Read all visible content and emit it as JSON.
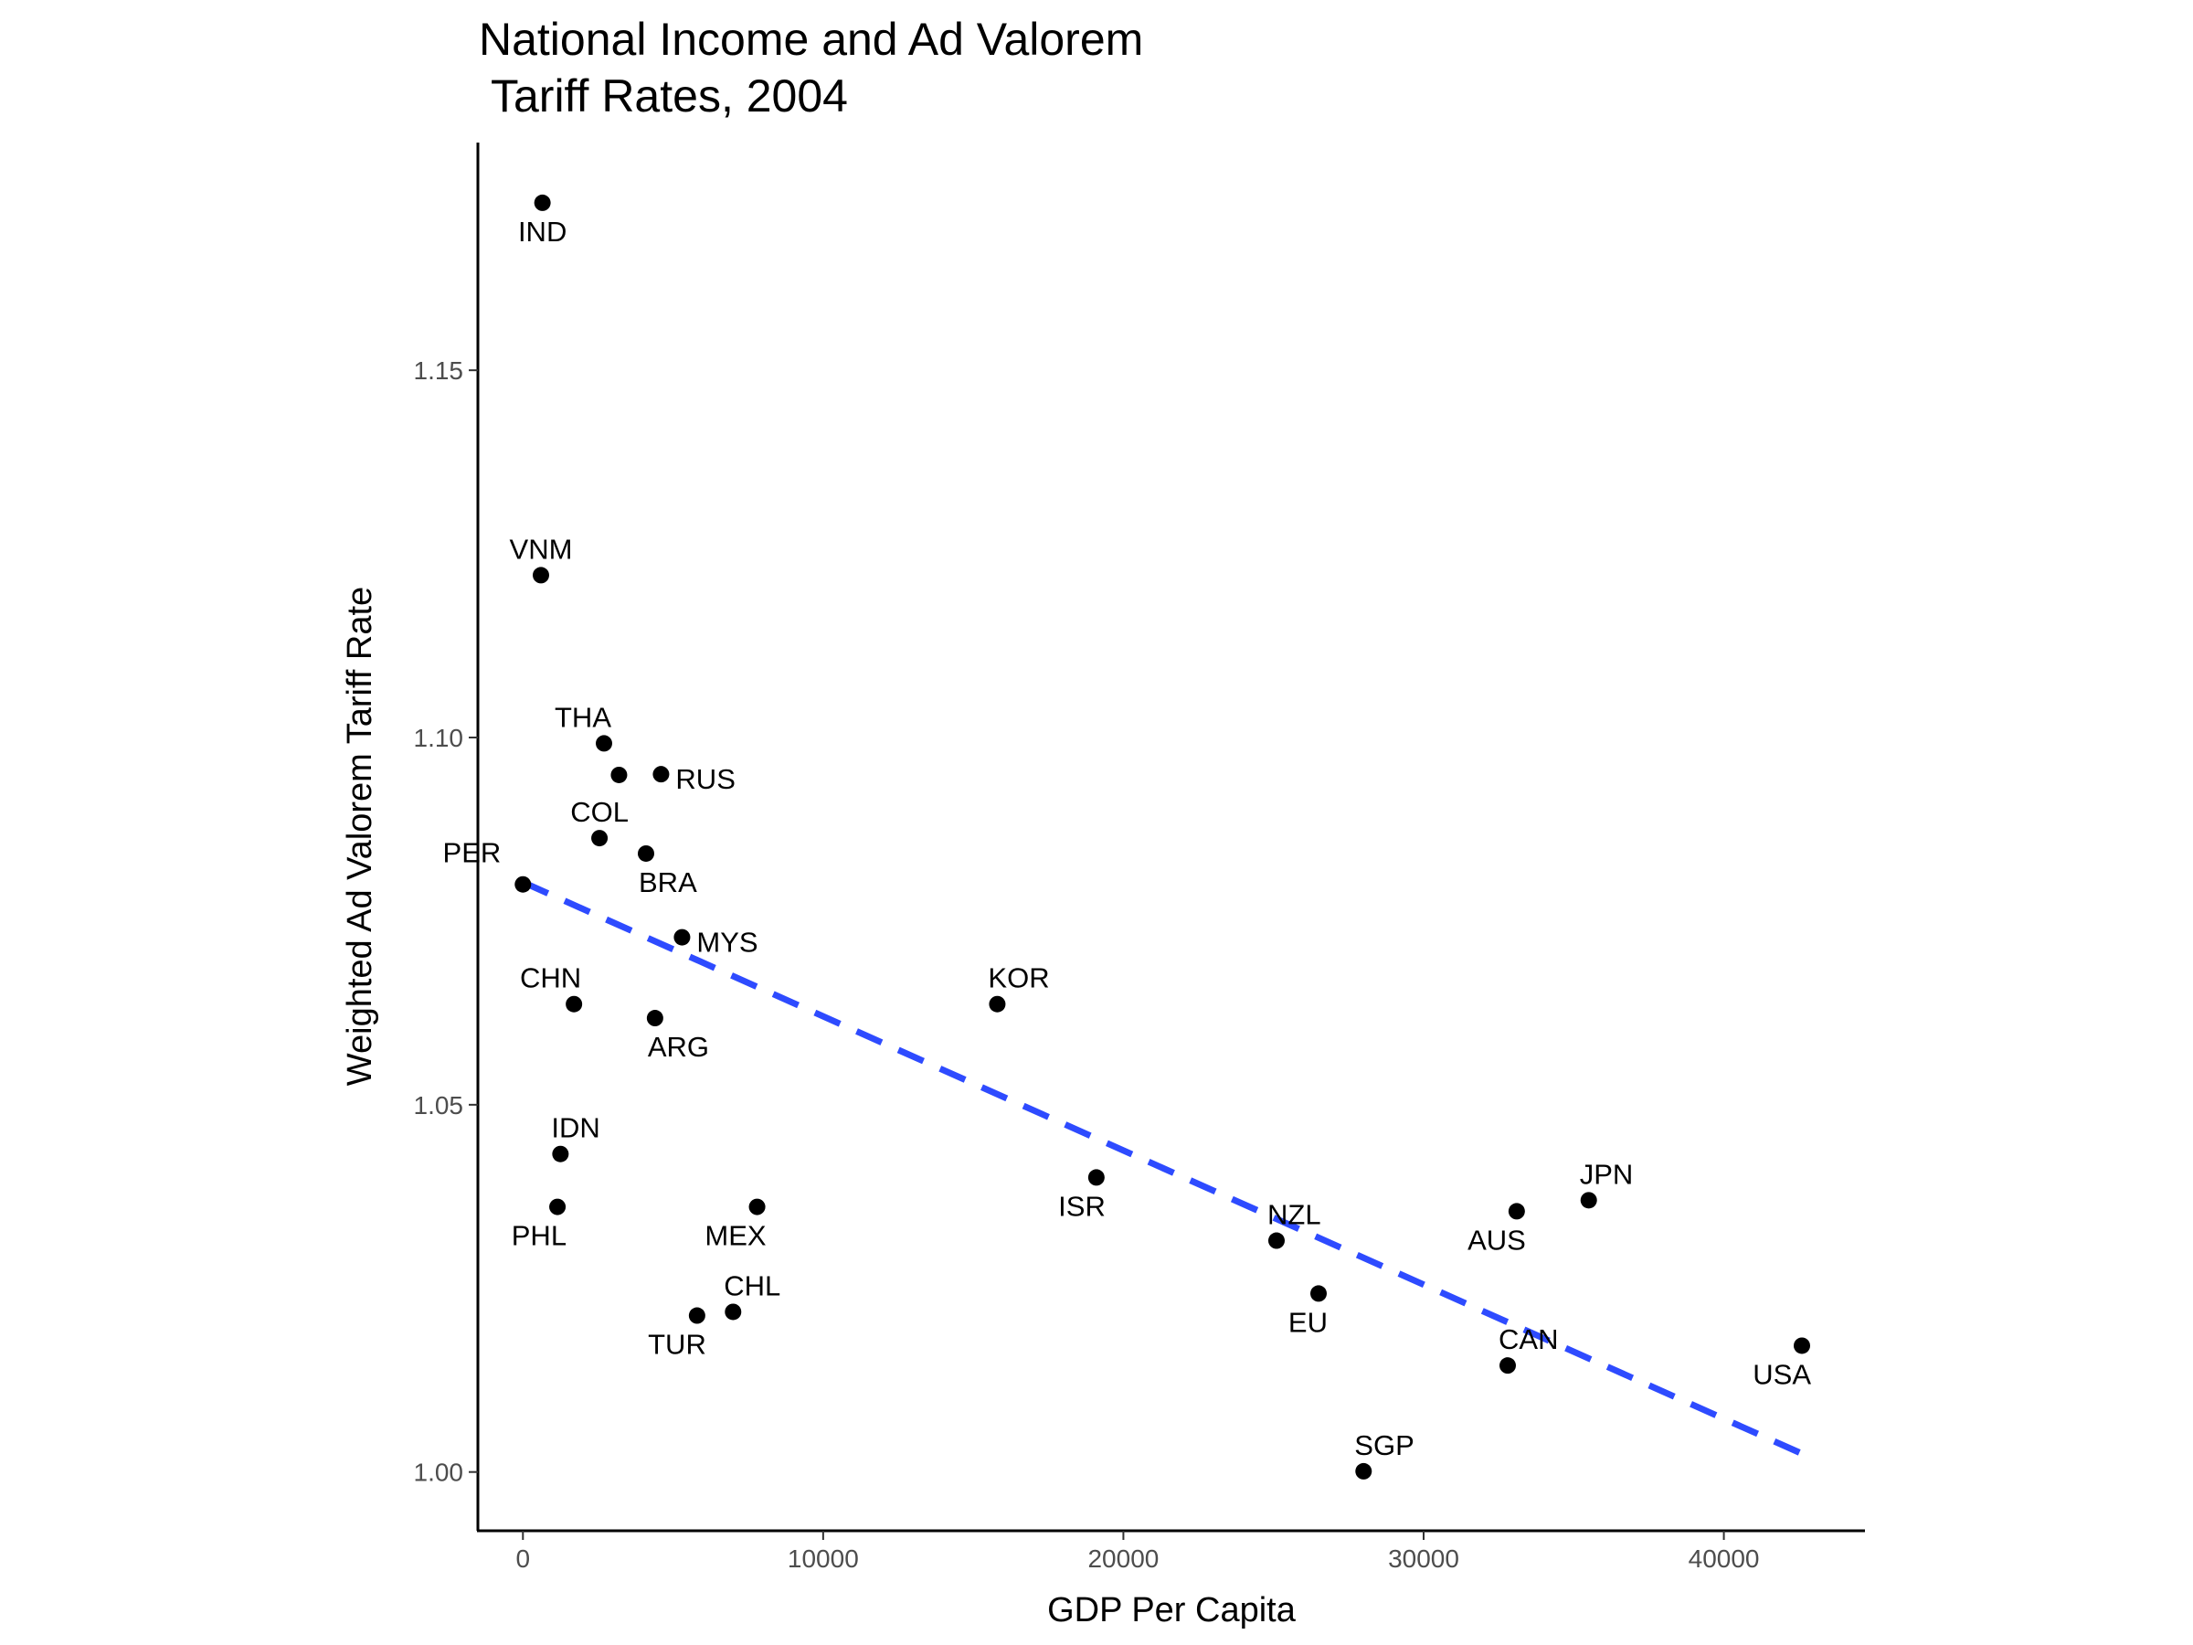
{
  "chart_data": {
    "type": "scatter",
    "title_lines": [
      "National Income and Ad Valorem",
      " Tariff Rates, 2004"
    ],
    "xlabel": "GDP Per Capita",
    "ylabel": "Weighted Ad Valorem Tariff Rate",
    "xlim": [
      -1500,
      44700
    ],
    "ylim": [
      0.992,
      1.181
    ],
    "x_ticks": [
      0,
      10000,
      20000,
      30000,
      40000
    ],
    "x_tick_labels": [
      "0",
      "10000",
      "20000",
      "30000",
      "40000"
    ],
    "y_ticks": [
      1.0,
      1.05,
      1.1,
      1.15
    ],
    "y_tick_labels": [
      "1.00",
      "1.05",
      "1.10",
      "1.15"
    ],
    "grid": false,
    "point_color": "#000000",
    "trend_color": "#2E4BFF",
    "trend_line": {
      "style": "dashed",
      "x": [
        0,
        42600
      ],
      "y": [
        1.0803,
        1.0025
      ]
    },
    "points": [
      {
        "label": "IND",
        "x": 650,
        "y": 1.1728,
        "label_pos": "below"
      },
      {
        "label": "VNM",
        "x": 600,
        "y": 1.1221,
        "label_pos": "above"
      },
      {
        "label": "THA",
        "x": 2700,
        "y": 1.0992,
        "label_pos": "above-left"
      },
      {
        "label": "",
        "x": 3200,
        "y": 1.0949,
        "label_pos": "none"
      },
      {
        "label": "RUS",
        "x": 4600,
        "y": 1.095,
        "label_pos": "right"
      },
      {
        "label": "COL",
        "x": 2550,
        "y": 1.0863,
        "label_pos": "above"
      },
      {
        "label": "PER",
        "x": 0,
        "y": 1.08,
        "label_pos": "left"
      },
      {
        "label": "BRA",
        "x": 4100,
        "y": 1.0842,
        "label_pos": "below-right"
      },
      {
        "label": "MYS",
        "x": 5300,
        "y": 1.0728,
        "label_pos": "right"
      },
      {
        "label": "CHN",
        "x": 1700,
        "y": 1.0637,
        "label_pos": "above-left"
      },
      {
        "label": "ARG",
        "x": 4400,
        "y": 1.0618,
        "label_pos": "below-right"
      },
      {
        "label": "KOR",
        "x": 15800,
        "y": 1.0637,
        "label_pos": "above-right"
      },
      {
        "label": "IDN",
        "x": 1250,
        "y": 1.0433,
        "label_pos": "above-right"
      },
      {
        "label": "PHL",
        "x": 1150,
        "y": 1.0361,
        "label_pos": "below-left"
      },
      {
        "label": "MEX",
        "x": 7800,
        "y": 1.0361,
        "label_pos": "below-left"
      },
      {
        "label": "CHL",
        "x": 7000,
        "y": 1.0218,
        "label_pos": "above-right"
      },
      {
        "label": "TUR",
        "x": 5800,
        "y": 1.0213,
        "label_pos": "below-left"
      },
      {
        "label": "ISR",
        "x": 19100,
        "y": 1.0401,
        "label_pos": "below-left"
      },
      {
        "label": "NZL",
        "x": 25100,
        "y": 1.0315,
        "label_pos": "above-right"
      },
      {
        "label": "EU",
        "x": 26500,
        "y": 1.0243,
        "label_pos": "below-left"
      },
      {
        "label": "AUS",
        "x": 33100,
        "y": 1.0355,
        "label_pos": "below-left"
      },
      {
        "label": "JPN",
        "x": 35500,
        "y": 1.037,
        "label_pos": "above-right"
      },
      {
        "label": "CAN",
        "x": 32800,
        "y": 1.0145,
        "label_pos": "above-right"
      },
      {
        "label": "USA",
        "x": 42600,
        "y": 1.0172,
        "label_pos": "below-left"
      },
      {
        "label": "SGP",
        "x": 28000,
        "y": 1.0001,
        "label_pos": "above-right"
      }
    ]
  }
}
